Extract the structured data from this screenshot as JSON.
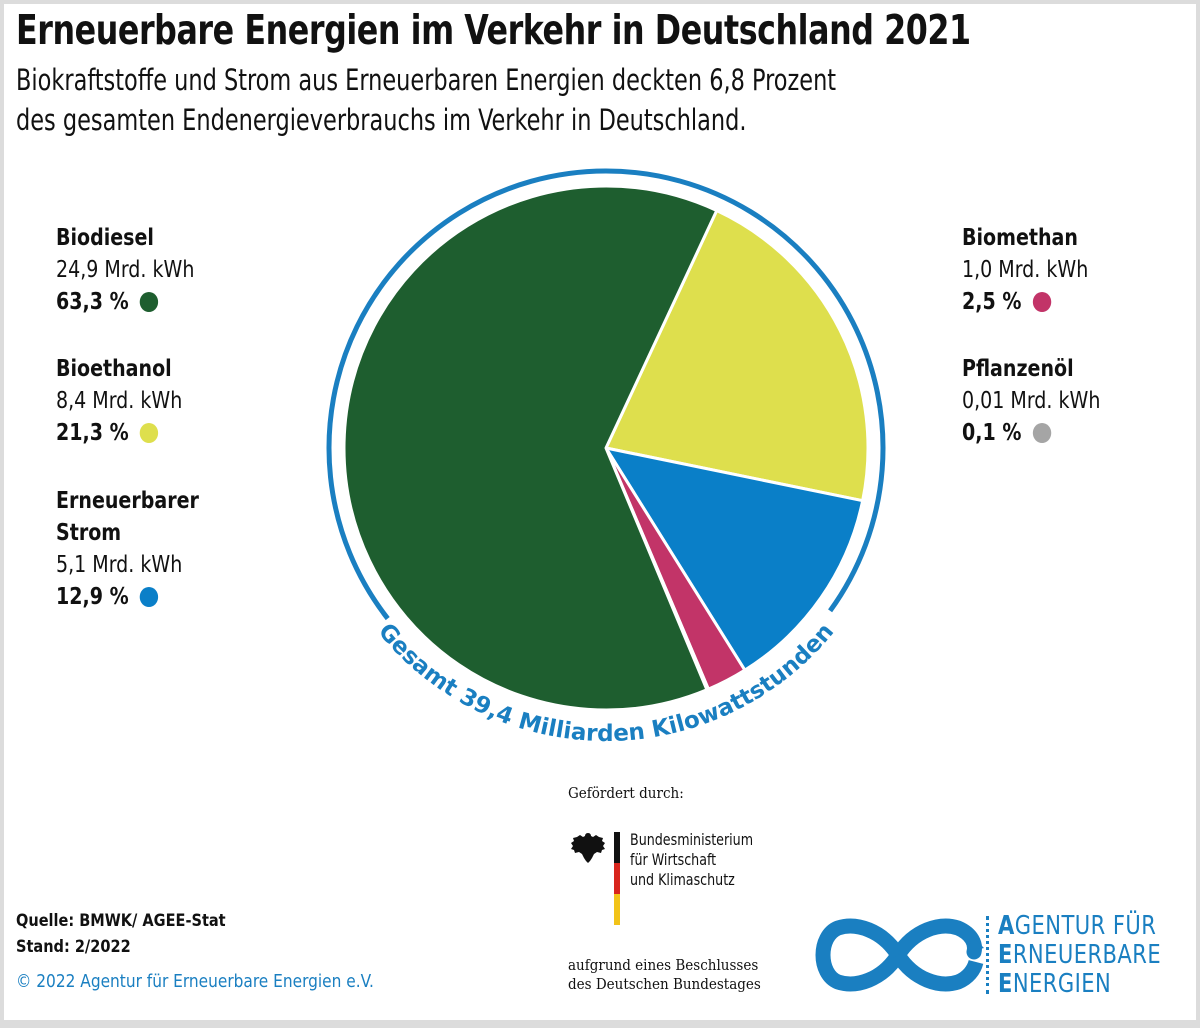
{
  "header": {
    "title": "Erneuerbare Energien im Verkehr in Deutschland 2021",
    "subtitle_line1": "Biokraftstoffe und Strom aus Erneuerbaren Energien deckten 6,8 Prozent",
    "subtitle_line2": "des gesamten Endenergieverbrauchs im Verkehr in Deutschland."
  },
  "legend_left": [
    {
      "name": "Biodiesel",
      "value": "24,9 Mrd. kWh",
      "pct": "63,3 %",
      "color": "#1e5e2f"
    },
    {
      "name": "Bioethanol",
      "value": "8,4 Mrd. kWh",
      "pct": "21,3 %",
      "color": "#dedf4d"
    },
    {
      "name_line1": "Erneuerbarer",
      "name_line2": "Strom",
      "value": "5,1 Mrd. kWh",
      "pct": "12,9 %",
      "color": "#0a7fc8"
    }
  ],
  "legend_right": [
    {
      "name": "Biomethan",
      "value": "1,0 Mrd. kWh",
      "pct": "2,5 %",
      "color": "#c23468"
    },
    {
      "name": "Pflanzenöl",
      "value": "0,01 Mrd. kWh",
      "pct": "0,1 %",
      "color": "#a5a5a5"
    }
  ],
  "chart_data": {
    "type": "pie",
    "title": "Erneuerbare Energien im Verkehr in Deutschland 2021",
    "total_label": "Gesamt 39,4 Milliarden Kilowattstunden",
    "unit": "Mrd. kWh",
    "slices": [
      {
        "label": "Bioethanol",
        "value": 8.4,
        "percent": 21.3,
        "color": "#dedf4d"
      },
      {
        "label": "Erneuerbarer Strom",
        "value": 5.1,
        "percent": 12.9,
        "color": "#0a7fc8"
      },
      {
        "label": "Biomethan",
        "value": 1.0,
        "percent": 2.5,
        "color": "#c23468"
      },
      {
        "label": "Pflanzenöl",
        "value": 0.01,
        "percent": 0.1,
        "color": "#a5a5a5"
      },
      {
        "label": "Biodiesel",
        "value": 24.9,
        "percent": 63.3,
        "color": "#1e5e2f"
      }
    ],
    "ring_color": "#1a7fc1"
  },
  "footer": {
    "source": "Quelle: BMWK/ AGEE-Stat",
    "date": "Stand:  2/2022",
    "copyright": "© 2022 Agentur für Erneuerbare Energien e.V."
  },
  "funding": {
    "label": "Gefördert durch:",
    "ministry_line1": "Bundesministerium",
    "ministry_line2": "für Wirtschaft",
    "ministry_line3": "und Klimaschutz",
    "note_line1": "aufgrund eines Beschlusses",
    "note_line2": "des Deutschen Bundestages"
  },
  "logo": {
    "line1_initial": "A",
    "line1_rest": "GENTUR FÜR",
    "line2_initial": "E",
    "line2_rest": "RNEUERBARE",
    "line3_initial": "E",
    "line3_rest": "NERGIEN",
    "color": "#1a7fc1"
  }
}
